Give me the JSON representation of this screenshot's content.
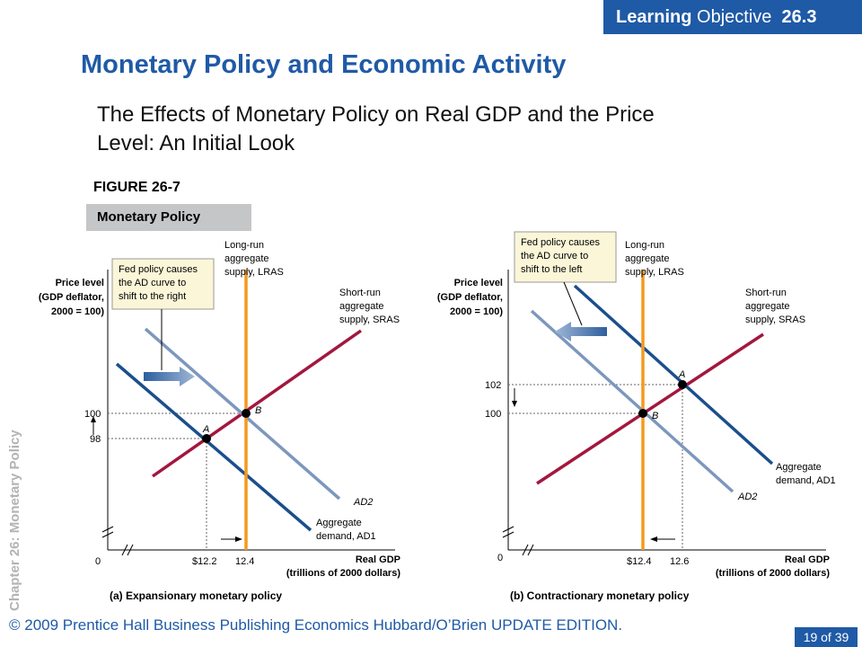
{
  "header": {
    "badge_bold": "Learning",
    "badge_text": "Objective",
    "badge_num": "26.3",
    "title": "Monetary Policy and Economic Activity",
    "subtitle": "The Effects of Monetary Policy on Real GDP and the Price Level:  An Initial Look"
  },
  "figure": {
    "label": "FIGURE 26-7",
    "band": "Monetary Policy"
  },
  "side_label": "Chapter 26:  Monetary Policy",
  "footer": "© 2009 Prentice Hall Business Publishing Economics  Hubbard/O’Brien UPDATE EDITION.",
  "slide_number": "19 of 39",
  "colors": {
    "brand_blue": "#1f5aa6",
    "lras": "#f39a1e",
    "sras": "#a3173f",
    "ad1": "#1b4f8c",
    "ad2": "#7d97bd"
  },
  "panel_a": {
    "caption": "(a) Expansionary monetary policy",
    "y_label": [
      "Price level",
      "(GDP deflator,",
      "2000 = 100)"
    ],
    "x_label": [
      "Real GDP",
      "(trillions of 2000 dollars)"
    ],
    "origin": "0",
    "y_ticks": [
      "100",
      "98"
    ],
    "x_ticks": [
      "$12.2",
      "12.4"
    ],
    "lras_label": [
      "Long-run",
      "aggregate",
      "supply, LRAS"
    ],
    "sras_label": [
      "Short-run",
      "aggregate",
      "supply, SRAS"
    ],
    "ad2_label": "AD2",
    "ad1_label": [
      "Aggregate",
      "demand, AD1"
    ],
    "point_a": "A",
    "point_b": "B",
    "callout": [
      "Fed policy causes",
      "the AD curve to",
      "shift to the right"
    ]
  },
  "panel_b": {
    "caption": "(b) Contractionary monetary policy",
    "y_label": [
      "Price level",
      "(GDP deflator,",
      "2000 = 100)"
    ],
    "x_label": [
      "Real GDP",
      "(trillions of 2000 dollars)"
    ],
    "origin": "0",
    "y_ticks": [
      "102",
      "100"
    ],
    "x_ticks": [
      "$12.4",
      "12.6"
    ],
    "lras_label": [
      "Long-run",
      "aggregate",
      "supply, LRAS"
    ],
    "sras_label": [
      "Short-run",
      "aggregate",
      "supply, SRAS"
    ],
    "ad2_label": "AD2",
    "ad1_label": [
      "Aggregate",
      "demand, AD1"
    ],
    "point_a": "A",
    "point_b": "B",
    "callout": [
      "Fed policy causes",
      "the AD curve to",
      "shift to the left"
    ]
  }
}
